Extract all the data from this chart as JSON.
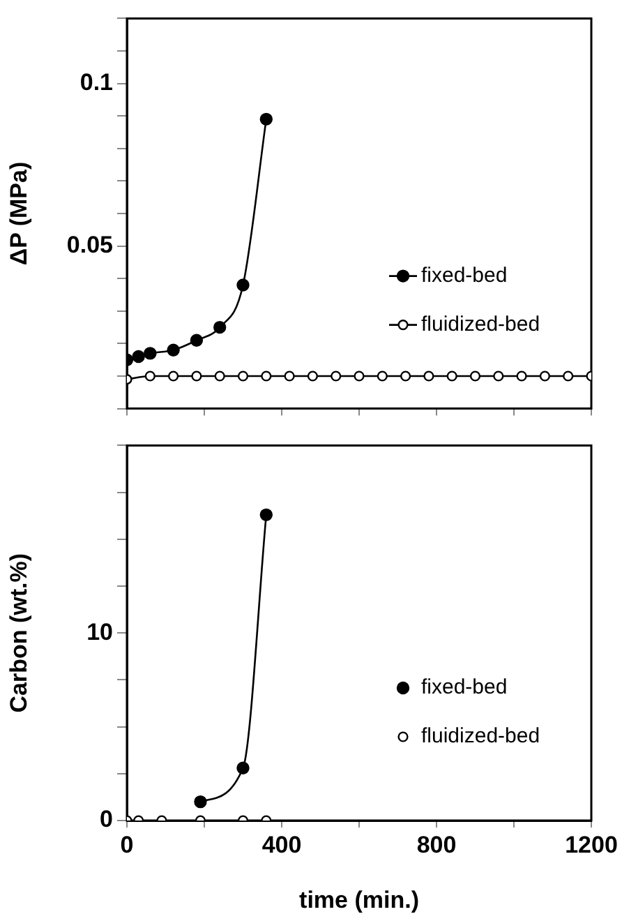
{
  "chart_data": [
    {
      "type": "line",
      "ylabel": "ΔP (MPa)",
      "xlim": [
        0,
        1200
      ],
      "ylim": [
        0,
        0.12
      ],
      "tick_labels": "y",
      "legend": "right",
      "marker": "circle",
      "xticks": [
        0,
        {
          "value": 200,
          "label": null
        },
        {
          "value": 400,
          "label": null
        },
        {
          "value": 600,
          "label": null
        },
        {
          "value": 800,
          "label": null
        },
        {
          "value": 1000,
          "label": null
        },
        1200
      ],
      "yticks": [
        {
          "value": 0,
          "label": null
        },
        {
          "value": 0.01,
          "label": null
        },
        {
          "value": 0.02,
          "label": null
        },
        {
          "value": 0.03,
          "label": null
        },
        {
          "value": 0.04,
          "label": null
        },
        {
          "value": 0.05,
          "label": "0.05"
        },
        {
          "value": 0.06,
          "label": null
        },
        {
          "value": 0.07,
          "label": null
        },
        {
          "value": 0.08,
          "label": null
        },
        {
          "value": 0.09,
          "label": null
        },
        {
          "value": 0.1,
          "label": "0.1"
        },
        {
          "value": 0.11,
          "label": null
        },
        {
          "value": 0.12,
          "label": null
        }
      ],
      "series": [
        {
          "name": "fixed-bed",
          "type": "line",
          "color": "#000000",
          "x": [
            0,
            30,
            60,
            120,
            180,
            240,
            300,
            360
          ],
          "values": [
            0.015,
            0.016,
            0.017,
            0.018,
            0.021,
            0.025,
            0.038,
            0.089
          ]
        },
        {
          "name": "fluidized-bed",
          "type": "line",
          "color": "#000000",
          "x": [
            0,
            60,
            120,
            180,
            240,
            300,
            360,
            420,
            480,
            540,
            600,
            660,
            720,
            780,
            840,
            900,
            960,
            1020,
            1080,
            1140,
            1200
          ],
          "values": [
            0.009,
            0.01,
            0.01,
            0.01,
            0.01,
            0.01,
            0.01,
            0.01,
            0.01,
            0.01,
            0.01,
            0.01,
            0.01,
            0.01,
            0.01,
            0.01,
            0.01,
            0.01,
            0.01,
            0.01,
            0.01
          ]
        }
      ]
    },
    {
      "type": "line",
      "ylabel": "Carbon (wt.%)",
      "xlabel": "time (min.)",
      "xlim": [
        0,
        1200
      ],
      "ylim": [
        0,
        20
      ],
      "legend": "right",
      "marker": "circle",
      "xticks": [
        0,
        {
          "value": 200,
          "label": null
        },
        400,
        {
          "value": 600,
          "label": null
        },
        800,
        {
          "value": 1000,
          "label": null
        },
        1200
      ],
      "yticks": [
        0,
        {
          "value": 2.5,
          "label": null
        },
        {
          "value": 5,
          "label": null
        },
        {
          "value": 7.5,
          "label": null
        },
        10,
        {
          "value": 12.5,
          "label": null
        },
        {
          "value": 15,
          "label": null
        },
        {
          "value": 17.5,
          "label": null
        },
        {
          "value": 20,
          "label": null
        }
      ],
      "series": [
        {
          "name": "fixed-bed",
          "type": "line",
          "color": "#000000",
          "x": [
            190,
            300,
            360
          ],
          "values": [
            1,
            2.8,
            16.3
          ]
        },
        {
          "name": "fluidized-bed",
          "type": "scatter",
          "color": "#000000",
          "x": [
            0,
            30,
            90,
            190,
            300,
            360
          ],
          "values": [
            0,
            0,
            0,
            0,
            0,
            0
          ]
        }
      ]
    }
  ]
}
